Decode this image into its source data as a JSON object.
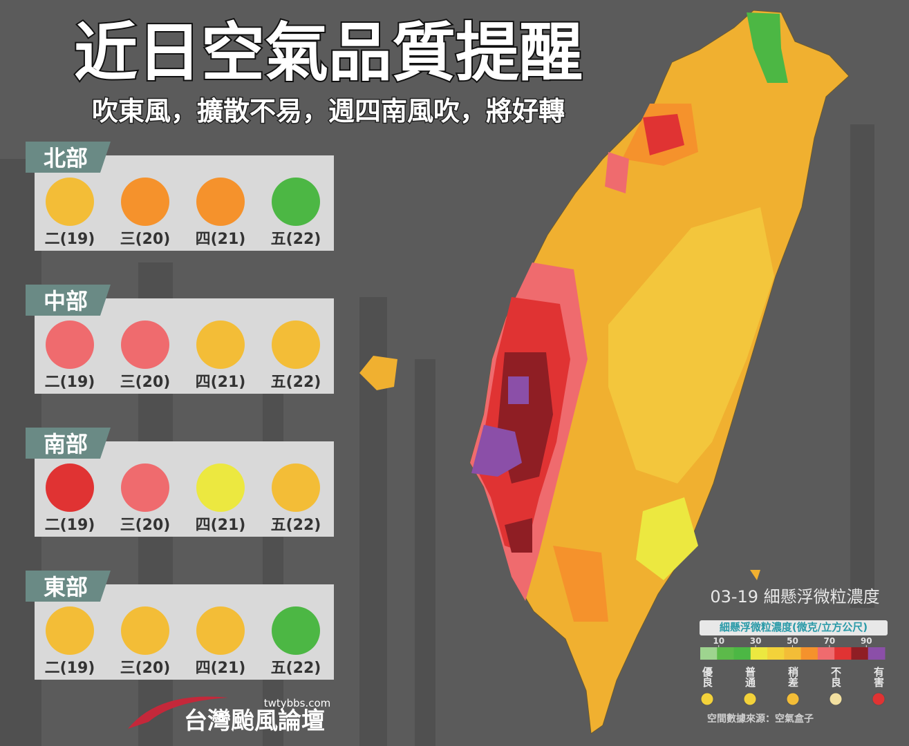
{
  "header": {
    "title": "近日空氣品質提醒",
    "subtitle": "吹東風，擴散不易，週四南風吹，將好轉"
  },
  "regions": [
    {
      "name": "北部",
      "days": [
        {
          "label": "二(19)",
          "color": "#f3bd37"
        },
        {
          "label": "三(20)",
          "color": "#f5922c"
        },
        {
          "label": "四(21)",
          "color": "#f5922c"
        },
        {
          "label": "五(22)",
          "color": "#4cb744"
        }
      ]
    },
    {
      "name": "中部",
      "days": [
        {
          "label": "二(19)",
          "color": "#ef6b6e"
        },
        {
          "label": "三(20)",
          "color": "#ef6b6e"
        },
        {
          "label": "四(21)",
          "color": "#f3bd37"
        },
        {
          "label": "五(22)",
          "color": "#f3bd37"
        }
      ]
    },
    {
      "name": "南部",
      "days": [
        {
          "label": "二(19)",
          "color": "#e03333"
        },
        {
          "label": "三(20)",
          "color": "#ef6b6e"
        },
        {
          "label": "四(21)",
          "color": "#ece840"
        },
        {
          "label": "五(22)",
          "color": "#f3bd37"
        }
      ]
    },
    {
      "name": "東部",
      "days": [
        {
          "label": "二(19)",
          "color": "#f3bd37"
        },
        {
          "label": "三(20)",
          "color": "#f3bd37"
        },
        {
          "label": "四(21)",
          "color": "#f3bd37"
        },
        {
          "label": "五(22)",
          "color": "#4cb744"
        }
      ]
    }
  ],
  "map": {
    "caption": "03-19 細懸浮微粒濃度",
    "legend": {
      "title": "細懸浮微粒濃度(微克/立方公尺)",
      "lim": [
        0,
        100
      ],
      "ticks": [
        10,
        30,
        50,
        70,
        90
      ],
      "colors": [
        "#9ed48f",
        "#5cba4a",
        "#4cb744",
        "#ece840",
        "#f3d23a",
        "#f3bd37",
        "#f5922c",
        "#ef6b6e",
        "#e03333",
        "#8f1e24",
        "#8b4fa8"
      ],
      "levels": [
        {
          "label": "優良",
          "color": "#f3d23a"
        },
        {
          "label": "普通",
          "color": "#f3d23a"
        },
        {
          "label": "稍差",
          "color": "#f3bd37"
        },
        {
          "label": "不良",
          "color": "#f3e0a0"
        },
        {
          "label": "有害",
          "color": "#e03333"
        }
      ]
    },
    "source": "空間數據來源：空氣盒子"
  },
  "brand": {
    "name": "台灣颱風論壇",
    "url": "twtybbs.com"
  }
}
